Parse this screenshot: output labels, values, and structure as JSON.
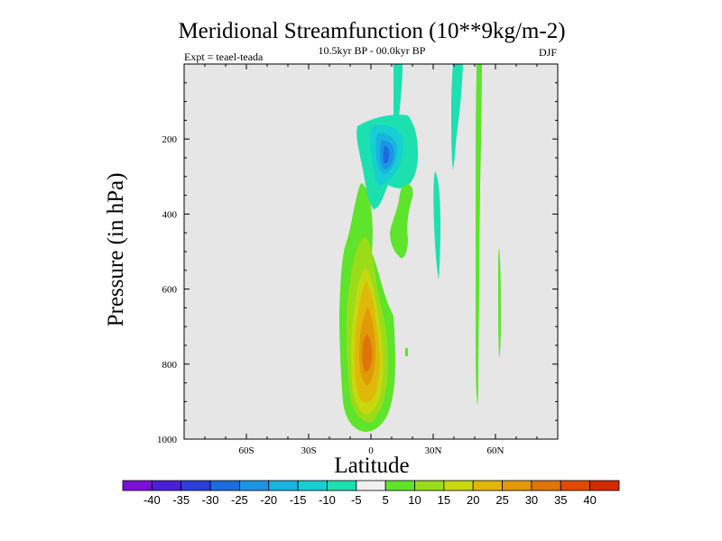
{
  "chart_data": {
    "type": "contour",
    "title": "Meridional Streamfunction (10**9kg/m-2)",
    "subtitle_center": "10.5kyr BP - 00.0kyr BP",
    "subtitle_left": "Expt = teael-teada",
    "subtitle_right": "DJF",
    "xlabel": "Latitude",
    "ylabel": "Pressure (in hPa)",
    "xlim": [
      -90,
      90
    ],
    "ylim": [
      1000,
      0
    ],
    "xticks": [
      {
        "value": -60,
        "label": "60S"
      },
      {
        "value": -30,
        "label": "30S"
      },
      {
        "value": 0,
        "label": "0"
      },
      {
        "value": 30,
        "label": "30N"
      },
      {
        "value": 60,
        "label": "60N"
      }
    ],
    "yticks": [
      {
        "value": 200,
        "label": "200"
      },
      {
        "value": 400,
        "label": "400"
      },
      {
        "value": 600,
        "label": "600"
      },
      {
        "value": 800,
        "label": "800"
      },
      {
        "value": 1000,
        "label": "1000"
      }
    ],
    "background_color": "#e6e6e6",
    "colorbar": {
      "levels": [
        "-40",
        "-35",
        "-30",
        "-25",
        "-20",
        "-15",
        "-10",
        "-5",
        "5",
        "10",
        "15",
        "20",
        "25",
        "30",
        "35",
        "40"
      ],
      "colors": [
        "#7a10d8",
        "#4a1fd6",
        "#2a3fdc",
        "#1e6ae0",
        "#1b94e4",
        "#18b4e0",
        "#16cfd2",
        "#1de0b0",
        "#f0f0f0",
        "#5ee42a",
        "#9adc1a",
        "#c8d80e",
        "#e0b80a",
        "#e09a08",
        "#e07406",
        "#e04a04",
        "#d42a02"
      ]
    },
    "contour_regions": [
      {
        "level_range": "5 to 10",
        "color": "#5ee42a",
        "center_lat": -5,
        "center_p": 680,
        "note": "large positive cell around equator"
      },
      {
        "level_range": "10 to 15",
        "color": "#9adc1a",
        "center_lat": -3,
        "center_p": 720
      },
      {
        "level_range": "15 to 20",
        "color": "#c8d80e",
        "center_lat": -3,
        "center_p": 740
      },
      {
        "level_range": "20 to 25",
        "color": "#e0b80a",
        "center_lat": -2,
        "center_p": 760
      },
      {
        "level_range": "25 to 30",
        "color": "#e09a08",
        "center_lat": -1,
        "center_p": 775
      },
      {
        "level_range": "-5 to -10",
        "color": "#1de0b0",
        "center_lat": 6,
        "center_p": 230,
        "note": "negative cell upper troposphere"
      },
      {
        "level_range": "-10 to -15",
        "color": "#16cfd2",
        "center_lat": 7,
        "center_p": 240
      },
      {
        "level_range": "-15 to -20",
        "color": "#18b4e0",
        "center_lat": 8,
        "center_p": 245
      },
      {
        "level_range": "-20 to -25",
        "color": "#1b94e4",
        "center_lat": 7,
        "center_p": 250
      }
    ]
  }
}
